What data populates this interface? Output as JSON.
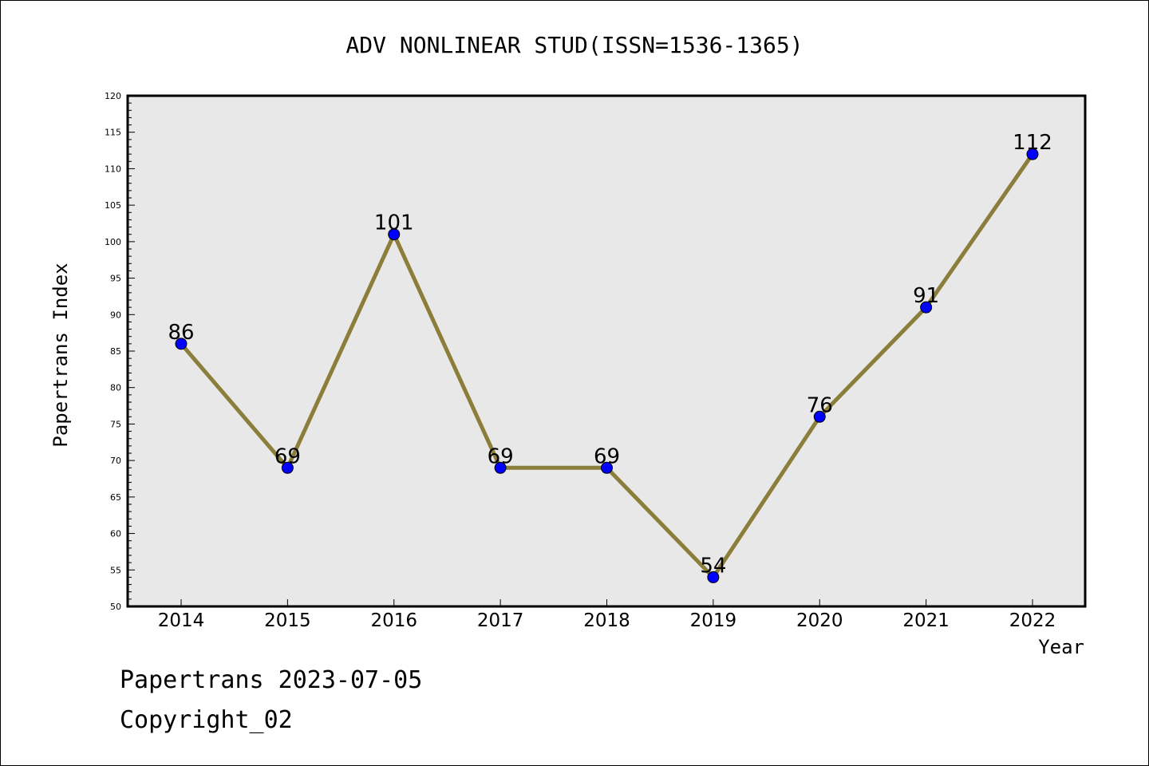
{
  "chart_data": {
    "type": "line",
    "title": "ADV NONLINEAR STUD(ISSN=1536-1365)",
    "xlabel": "Year",
    "ylabel": "Papertrans Index",
    "categories": [
      "2014",
      "2015",
      "2016",
      "2017",
      "2018",
      "2019",
      "2020",
      "2021",
      "2022"
    ],
    "series": [
      {
        "values": [
          86,
          69,
          101,
          69,
          69,
          54,
          76,
          91,
          112
        ],
        "data_labels": [
          "86",
          "69",
          "101",
          "69",
          "69",
          "54",
          "76",
          "91",
          "112"
        ]
      }
    ],
    "ylim": [
      50,
      120
    ],
    "yticks": [
      "50",
      "55",
      "60",
      "65",
      "70",
      "75",
      "80",
      "85",
      "90",
      "95",
      "100",
      "105",
      "110",
      "115",
      "120"
    ],
    "grid": false,
    "legend": "none",
    "colors": {
      "line": "#8b7d3a",
      "marker": "#0000ff",
      "plot_background": "#e8e8e8"
    }
  },
  "footer": {
    "line1": "Papertrans 2023-07-05",
    "line2": "Copyright_02"
  }
}
